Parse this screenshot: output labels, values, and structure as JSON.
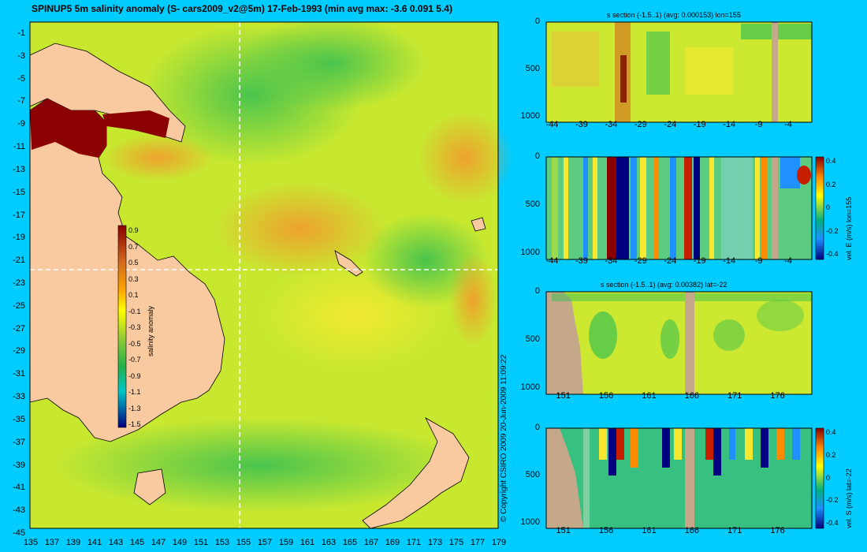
{
  "title": "SPINUP5 5m salinity anomaly  (S- cars2009_v2@5m) 17-Feb-1993 (min avg max: -3.6 0.091 5.4)",
  "copyright": "© Copyright CSIRO 2009   20-Jun-2009 11:09:22",
  "colors": {
    "background": "#00ccff",
    "land": "#f9c9a0",
    "bathymetry": "#c4a889"
  },
  "chart_data": [
    {
      "type": "heatmap",
      "name": "map",
      "title": "SPINUP5 5m salinity anomaly  (S- cars2009_v2@5m) 17-Feb-1993 (min avg max: -3.6 0.091 5.4)",
      "xlabel": "",
      "ylabel": "",
      "xlim": [
        135,
        180
      ],
      "ylim": [
        -45,
        0
      ],
      "x_ticks": [
        "135",
        "137",
        "139",
        "141",
        "143",
        "145",
        "147",
        "149",
        "151",
        "153",
        "155",
        "157",
        "159",
        "161",
        "163",
        "165",
        "167",
        "169",
        "171",
        "173",
        "175",
        "177",
        "179"
      ],
      "y_ticks": [
        "-1",
        "-3",
        "-5",
        "-7",
        "-9",
        "-11",
        "-13",
        "-15",
        "-17",
        "-19",
        "-21",
        "-23",
        "-25",
        "-27",
        "-29",
        "-31",
        "-33",
        "-35",
        "-37",
        "-39",
        "-41",
        "-43",
        "-45"
      ],
      "crosshair": {
        "lon": 155,
        "lat": -22
      },
      "colorbar": {
        "label": "salinity anomaly",
        "ticks": [
          "0.9",
          "0.7",
          "0.5",
          "0.3",
          "0.1",
          "-0.1",
          "-0.3",
          "-0.5",
          "-0.7",
          "-0.9",
          "-1.1",
          "-1.3",
          "-1.5"
        ]
      }
    },
    {
      "type": "heatmap",
      "name": "s-section-lon",
      "title": "s section (-1.5..1) (avg: 0.000153) lon=155",
      "x_ticks": [
        "-44",
        "-39",
        "-34",
        "-29",
        "-24",
        "-19",
        "-14",
        "-9",
        "-4"
      ],
      "y_ticks": [
        "0",
        "500",
        "1000"
      ],
      "xlim": [
        -45,
        0
      ],
      "ylim": [
        1000,
        0
      ]
    },
    {
      "type": "heatmap",
      "name": "vel-e-section",
      "title": "",
      "x_ticks": [
        "-44",
        "-39",
        "-34",
        "-29",
        "-24",
        "-19",
        "-14",
        "-9",
        "-4"
      ],
      "y_ticks": [
        "0",
        "500",
        "1000"
      ],
      "xlim": [
        -45,
        0
      ],
      "ylim": [
        1000,
        0
      ],
      "colorbar": {
        "label": "vel. E (m/s) lon=155",
        "ticks": [
          "0.4",
          "0.2",
          "0",
          "-0.2",
          "-0.4"
        ]
      }
    },
    {
      "type": "heatmap",
      "name": "s-section-lat",
      "title": "s section (-1.5..1) (avg: 0.00382) lat=-22",
      "x_ticks": [
        "151",
        "156",
        "161",
        "166",
        "171",
        "176"
      ],
      "y_ticks": [
        "0",
        "500",
        "1000"
      ],
      "xlim": [
        149,
        180
      ],
      "ylim": [
        1000,
        0
      ]
    },
    {
      "type": "heatmap",
      "name": "vel-s-section",
      "title": "",
      "x_ticks": [
        "151",
        "156",
        "161",
        "166",
        "171",
        "176"
      ],
      "y_ticks": [
        "0",
        "500",
        "1000"
      ],
      "xlim": [
        149,
        180
      ],
      "ylim": [
        1000,
        0
      ],
      "colorbar": {
        "label": "vel. S (m/s) lat=-22",
        "ticks": [
          "0.4",
          "0.2",
          "0",
          "-0.2",
          "-0.4"
        ]
      }
    }
  ]
}
